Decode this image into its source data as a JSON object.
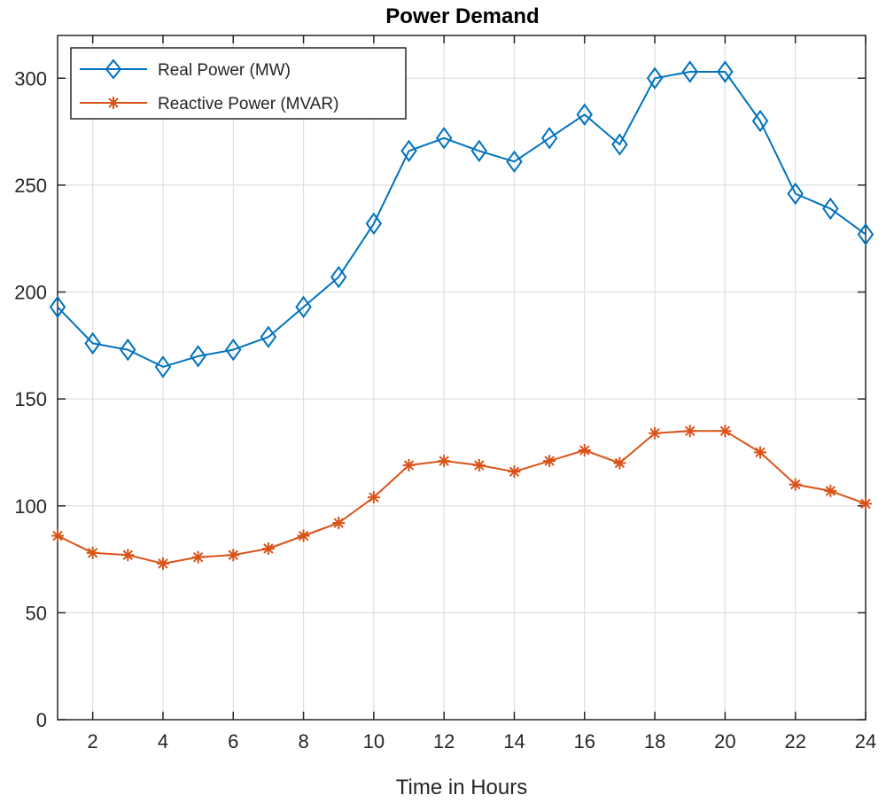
{
  "chart_data": {
    "type": "line",
    "title": "Power Demand",
    "xlabel": "Time in Hours",
    "ylabel": "",
    "xlim": [
      1,
      24
    ],
    "ylim": [
      0,
      320
    ],
    "grid": true,
    "legend_position": "top-left",
    "x": [
      1,
      2,
      3,
      4,
      5,
      6,
      7,
      8,
      9,
      10,
      11,
      12,
      13,
      14,
      15,
      16,
      17,
      18,
      19,
      20,
      21,
      22,
      23,
      24
    ],
    "x_ticks": [
      2,
      4,
      6,
      8,
      10,
      12,
      14,
      16,
      18,
      20,
      22,
      24
    ],
    "x_tick_labels": [
      "2",
      "4",
      "6",
      "8",
      "10",
      "12",
      "14",
      "16",
      "18",
      "20",
      "22",
      "24"
    ],
    "y_ticks": [
      0,
      50,
      100,
      150,
      200,
      250,
      300
    ],
    "y_tick_labels": [
      "0",
      "50",
      "100",
      "150",
      "200",
      "250",
      "300"
    ],
    "series": [
      {
        "name": "Real Power (MW)",
        "color": "#0072BD",
        "marker": "diamond",
        "values": [
          193,
          176,
          173,
          165,
          170,
          173,
          179,
          193,
          207,
          232,
          266,
          272,
          266,
          261,
          272,
          283,
          269,
          300,
          303,
          303,
          280,
          246,
          239,
          227
        ]
      },
      {
        "name": "Reactive Power (MVAR)",
        "color": "#D95319",
        "marker": "asterisk",
        "values": [
          86,
          78,
          77,
          73,
          76,
          77,
          80,
          86,
          92,
          104,
          119,
          121,
          119,
          116,
          121,
          126,
          120,
          134,
          135,
          135,
          125,
          110,
          107,
          101
        ]
      }
    ]
  }
}
